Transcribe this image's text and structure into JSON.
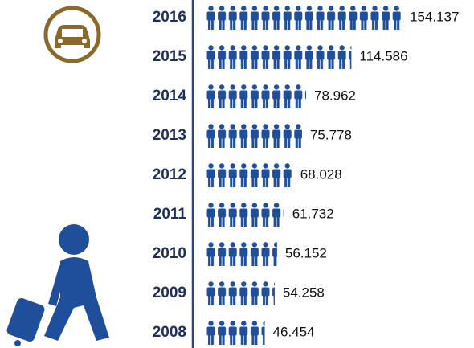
{
  "chart_data": {
    "type": "pictogram",
    "categories": [
      "2016",
      "2015",
      "2014",
      "2013",
      "2012",
      "2011",
      "2010",
      "2009",
      "2008"
    ],
    "values": [
      154137,
      114586,
      78962,
      75778,
      68028,
      61732,
      56152,
      54258,
      46454
    ],
    "value_labels": [
      "154.137",
      "114.586",
      "78.962",
      "75.778",
      "68.028",
      "61.732",
      "56.152",
      "54.258",
      "46.454"
    ],
    "color": "#1f4e9a"
  }
}
